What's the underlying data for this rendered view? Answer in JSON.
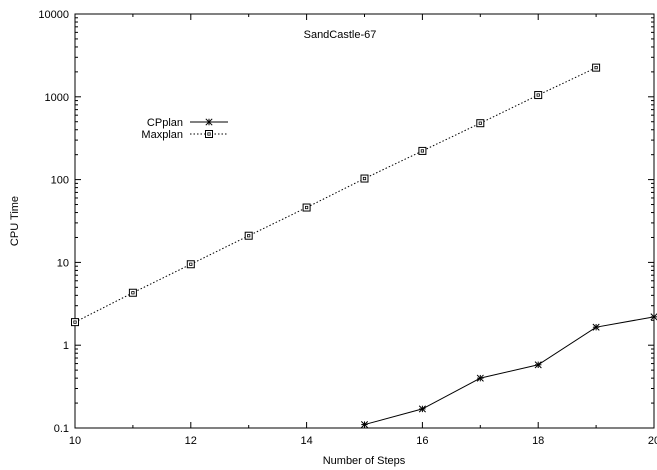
{
  "chart_data": {
    "type": "line",
    "title": "SandCastle-67",
    "xlabel": "Number of Steps",
    "ylabel": "CPU Time",
    "xlim": [
      10,
      20
    ],
    "ylim": [
      0.1,
      10000
    ],
    "yscale": "log",
    "grid": false,
    "legend_position": "top-left",
    "x_ticks": [
      "10",
      "12",
      "14",
      "16",
      "18",
      "20"
    ],
    "y_ticks": [
      "0.1",
      "1",
      "10",
      "100",
      "1000",
      "10000"
    ],
    "series": [
      {
        "name": "CPplan",
        "marker": "asterisk",
        "line": "solid",
        "x": [
          15,
          16,
          17,
          18,
          19,
          20
        ],
        "y": [
          0.11,
          0.17,
          0.4,
          0.58,
          1.65,
          2.2
        ]
      },
      {
        "name": "Maxplan",
        "marker": "square",
        "line": "dotted",
        "x": [
          10,
          11,
          12,
          13,
          14,
          15,
          16,
          17,
          18,
          19
        ],
        "y": [
          1.9,
          4.3,
          9.5,
          21,
          46,
          103,
          222,
          480,
          1050,
          2250
        ]
      }
    ]
  }
}
